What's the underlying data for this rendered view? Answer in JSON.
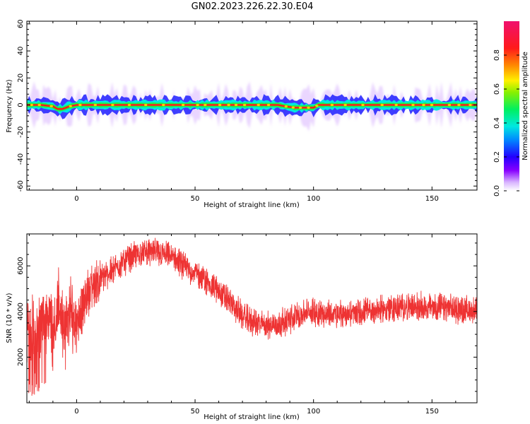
{
  "title": "GN02.2023.226.22.30.E04",
  "chart_data": [
    {
      "type": "heatmap",
      "xlabel": "Height of straight line (km)",
      "ylabel": "Frequency (Hz)",
      "xlim": [
        -21,
        169
      ],
      "ylim": [
        -63,
        62
      ],
      "x_ticks": [
        0,
        50,
        100,
        150
      ],
      "x_tick_labels": [
        "0",
        "50",
        "100",
        "150"
      ],
      "y_ticks": [
        -60,
        -40,
        -20,
        0,
        20,
        40,
        60
      ],
      "y_tick_labels": [
        "-60",
        "-40",
        "-20",
        "0",
        "20",
        "40",
        "60"
      ],
      "colorbar": {
        "label": "Normalized spectral amplitude",
        "range": [
          0,
          1
        ],
        "ticks": [
          0,
          0.2,
          0.4,
          0.6,
          0.8
        ],
        "tick_labels": [
          "0.0",
          "0.2",
          "0.4",
          "0.6",
          "0.8"
        ],
        "colormap": "rainbow (violet-blue-cyan-green-yellow-red-magenta)"
      },
      "band_center_hz": [
        [
          -21,
          0
        ],
        [
          -15,
          0
        ],
        [
          -10,
          -1
        ],
        [
          -8,
          -3
        ],
        [
          -6,
          -3
        ],
        [
          -3,
          -1
        ],
        [
          0,
          0
        ],
        [
          10,
          0
        ],
        [
          30,
          0
        ],
        [
          60,
          0
        ],
        [
          85,
          0
        ],
        [
          88,
          -1
        ],
        [
          92,
          -2
        ],
        [
          100,
          -2
        ],
        [
          102,
          0
        ],
        [
          169,
          0
        ]
      ]
    },
    {
      "type": "line",
      "series": [
        {
          "color": "#ee3333"
        }
      ],
      "xlabel": "Height of straight line (km)",
      "ylabel": "SNR (10 * v/v)",
      "xlim": [
        -21,
        169
      ],
      "ylim": [
        0,
        7400
      ],
      "x_ticks": [
        0,
        50,
        100,
        150
      ],
      "x_tick_labels": [
        "0",
        "50",
        "100",
        "150"
      ],
      "y_ticks": [
        2000,
        4000,
        6000
      ],
      "y_tick_labels": [
        "2000",
        "4000",
        "6000"
      ],
      "mean_curve": [
        [
          -21,
          3500
        ],
        [
          -18,
          2800
        ],
        [
          -15,
          3400
        ],
        [
          -12,
          4000
        ],
        [
          -10,
          3200
        ],
        [
          -7,
          4300
        ],
        [
          -5,
          3000
        ],
        [
          -3,
          3900
        ],
        [
          0,
          3600
        ],
        [
          3,
          4200
        ],
        [
          5,
          4900
        ],
        [
          10,
          5400
        ],
        [
          15,
          5800
        ],
        [
          20,
          6200
        ],
        [
          25,
          6500
        ],
        [
          30,
          6600
        ],
        [
          35,
          6550
        ],
        [
          40,
          6400
        ],
        [
          45,
          6000
        ],
        [
          50,
          5700
        ],
        [
          55,
          5300
        ],
        [
          60,
          4900
        ],
        [
          65,
          4400
        ],
        [
          70,
          3800
        ],
        [
          75,
          3500
        ],
        [
          80,
          3400
        ],
        [
          85,
          3450
        ],
        [
          90,
          3650
        ],
        [
          95,
          3900
        ],
        [
          100,
          4000
        ],
        [
          105,
          3900
        ],
        [
          110,
          3850
        ],
        [
          120,
          3950
        ],
        [
          130,
          4100
        ],
        [
          140,
          4200
        ],
        [
          150,
          4200
        ],
        [
          160,
          4100
        ],
        [
          169,
          4050
        ]
      ]
    }
  ]
}
